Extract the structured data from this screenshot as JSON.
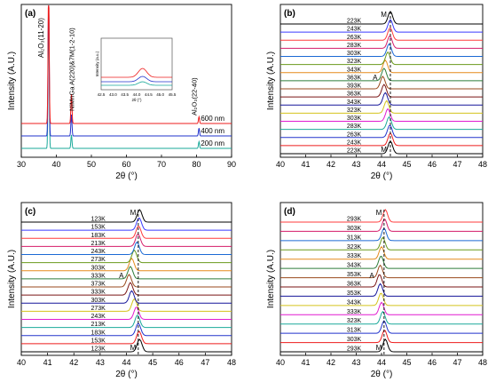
{
  "chart_data": [
    {
      "panel": "(a)",
      "type": "line",
      "xlabel": "2θ (°)",
      "ylabel": "Intensity (A.U.)",
      "xlim": [
        30,
        90
      ],
      "xticks": [
        "30",
        "40",
        "50",
        "60",
        "70",
        "80",
        "90"
      ],
      "series": [
        {
          "name": "200 nm",
          "color": "#1aa99a",
          "peaks": [
            [
              37.8,
              1.0
            ],
            [
              44.3,
              0.25
            ],
            [
              80.7,
              0.3
            ]
          ]
        },
        {
          "name": "400 nm",
          "color": "#2233cc",
          "peaks": [
            [
              37.8,
              1.0
            ],
            [
              44.3,
              0.4
            ],
            [
              80.7,
              0.35
            ]
          ]
        },
        {
          "name": "600 nm",
          "color": "#ee1c1c",
          "peaks": [
            [
              37.8,
              1.0
            ],
            [
              44.3,
              0.55
            ],
            [
              80.7,
              0.3
            ]
          ]
        }
      ],
      "annotations": [
        "Al₂O₃(11-20)",
        "NiMnGa A(220)&7M(1-2-10)",
        "Al₂O₃(22-40)"
      ],
      "inset": {
        "ylabel": "Intensity (a.u.)",
        "xlabel": "2θ (°)",
        "xticks": [
          "42.5",
          "43.0",
          "43.5",
          "44.0",
          "44.5",
          "45.0",
          "45.5"
        ]
      }
    },
    {
      "panel": "(b)",
      "type": "line",
      "xlabel": "2θ (°)",
      "ylabel": "Intensity (A.U.)",
      "xlim": [
        40,
        48
      ],
      "xticks": [
        "40",
        "41",
        "42",
        "43",
        "44",
        "45",
        "46",
        "47",
        "48"
      ],
      "dashed_line_x": 44.35,
      "labels_top_to_bottom": [
        "223K",
        "243K",
        "263K",
        "283K",
        "303K",
        "323K",
        "343K",
        "363K",
        "393K",
        "363K",
        "343K",
        "323K",
        "303K",
        "283K",
        "263K",
        "243K",
        "223K"
      ],
      "peak_positions": [
        44.35,
        44.35,
        44.34,
        44.33,
        44.3,
        44.25,
        44.15,
        44.1,
        44.05,
        44.1,
        44.15,
        44.2,
        44.25,
        44.3,
        44.33,
        44.35,
        44.35
      ],
      "markers": [
        "M",
        "A",
        "M"
      ]
    },
    {
      "panel": "(c)",
      "type": "line",
      "xlabel": "2θ (°)",
      "ylabel": "Intensity (A.U.)",
      "xlim": [
        40,
        48
      ],
      "xticks": [
        "40",
        "41",
        "42",
        "43",
        "44",
        "45",
        "46",
        "47",
        "48"
      ],
      "dashed_line_x": 44.45,
      "labels_top_to_bottom": [
        "123K",
        "153K",
        "183K",
        "213K",
        "243K",
        "273K",
        "303K",
        "333K",
        "373K",
        "333K",
        "303K",
        "273K",
        "243K",
        "213K",
        "183K",
        "153K",
        "123K"
      ],
      "peak_positions": [
        44.5,
        44.48,
        44.46,
        44.44,
        44.4,
        44.3,
        44.2,
        44.15,
        44.1,
        44.15,
        44.2,
        44.3,
        44.38,
        44.42,
        44.45,
        44.48,
        44.5
      ],
      "markers": [
        "M",
        "A",
        "M"
      ]
    },
    {
      "panel": "(d)",
      "type": "line",
      "xlabel": "2θ (°)",
      "ylabel": "Intensity (A.U.)",
      "xlim": [
        40,
        48
      ],
      "xticks": [
        "40",
        "41",
        "42",
        "43",
        "44",
        "45",
        "46",
        "47",
        "48"
      ],
      "dashed_line_x": 44.1,
      "labels_top_to_bottom": [
        "293K",
        "303K",
        "313K",
        "323K",
        "333K",
        "343K",
        "353K",
        "363K",
        "353K",
        "343K",
        "333K",
        "323K",
        "313K",
        "303K",
        "293K"
      ],
      "peak_positions": [
        44.15,
        44.12,
        44.1,
        44.05,
        44.0,
        43.98,
        43.95,
        43.92,
        43.95,
        43.98,
        44.0,
        44.05,
        44.1,
        44.12,
        44.15
      ],
      "markers": [
        "M",
        "A",
        "M"
      ]
    }
  ],
  "stack_colors": [
    "#000000",
    "#ee1c1c",
    "#2233cc",
    "#1aa99a",
    "#e11bd0",
    "#d4c31c",
    "#16169a",
    "#7a1515",
    "#9a4a1c",
    "#2e7d3a",
    "#e58a1c",
    "#6a9a1c",
    "#1c6ad4",
    "#d41c6a",
    "#ff3b3b",
    "#3b3bff",
    "#000000"
  ]
}
